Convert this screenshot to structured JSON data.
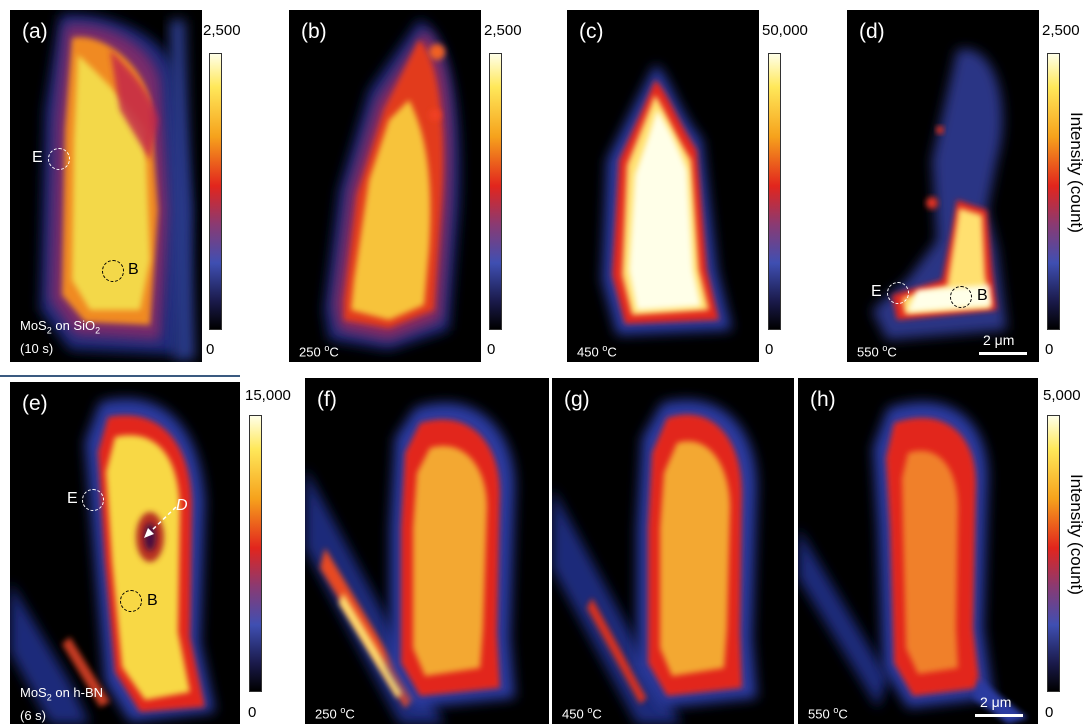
{
  "panels": {
    "a": {
      "label": "(a)",
      "cond_line1_pre": "MoS",
      "cond_line1_sub": "2",
      "cond_line1_post": " on SiO",
      "cond_line1_sub2": "2",
      "cond_line2": "(10 s)",
      "mark_e": "E",
      "mark_b": "B"
    },
    "b": {
      "label": "(b)",
      "temp": "250",
      "unit_sup": "o",
      "unit": "C"
    },
    "c": {
      "label": "(c)",
      "temp": "450",
      "unit_sup": "o",
      "unit": "C"
    },
    "d": {
      "label": "(d)",
      "temp": "550",
      "unit_sup": "o",
      "unit": "C",
      "mark_e": "E",
      "mark_b": "B",
      "scale": "2 μm"
    },
    "e": {
      "label": "(e)",
      "cond_line1_pre": "MoS",
      "cond_line1_sub": "2",
      "cond_line1_post": " on h-BN",
      "cond_line2": "(6 s)",
      "mark_e": "E",
      "mark_b": "B",
      "mark_d": "D"
    },
    "f": {
      "label": "(f)",
      "temp": "250",
      "unit_sup": "o",
      "unit": "C"
    },
    "g": {
      "label": "(g)",
      "temp": "450",
      "unit_sup": "o",
      "unit": "C"
    },
    "h": {
      "label": "(h)",
      "temp": "550",
      "unit_sup": "o",
      "unit": "C",
      "scale": "2 μm"
    }
  },
  "colorbars": {
    "a": {
      "max": "2,500",
      "min": "0"
    },
    "b": {
      "max": "2,500",
      "min": "0"
    },
    "c": {
      "max": "50,000",
      "min": "0"
    },
    "d": {
      "max": "2,500",
      "min": "0",
      "title": "Intensity (count)"
    },
    "e": {
      "max": "15,000",
      "min": "0"
    },
    "h": {
      "max": "5,000",
      "min": "0",
      "title": "Intensity (count)"
    }
  },
  "colormap": [
    "#000000",
    "#1a1a4a",
    "#3f4fb2",
    "#8a3a72",
    "#e2251d",
    "#f6a21c",
    "#ffe85a",
    "#ffffe8"
  ]
}
